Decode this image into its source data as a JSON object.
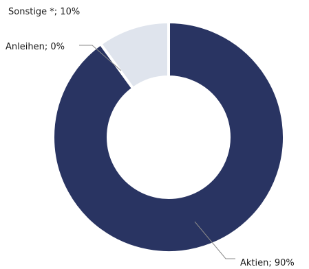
{
  "chart_data": {
    "type": "pie",
    "variant": "donut",
    "categories": [
      "Aktien",
      "Anleihen",
      "Sonstige *"
    ],
    "values": [
      90,
      0,
      10
    ],
    "labels": [
      "Aktien; 90%",
      "Anleihen; 0%",
      "Sonstige *; 10%"
    ],
    "colors": [
      "#293462",
      "#ffffff",
      "#dfe4ed"
    ],
    "legend": "none",
    "title": ""
  }
}
